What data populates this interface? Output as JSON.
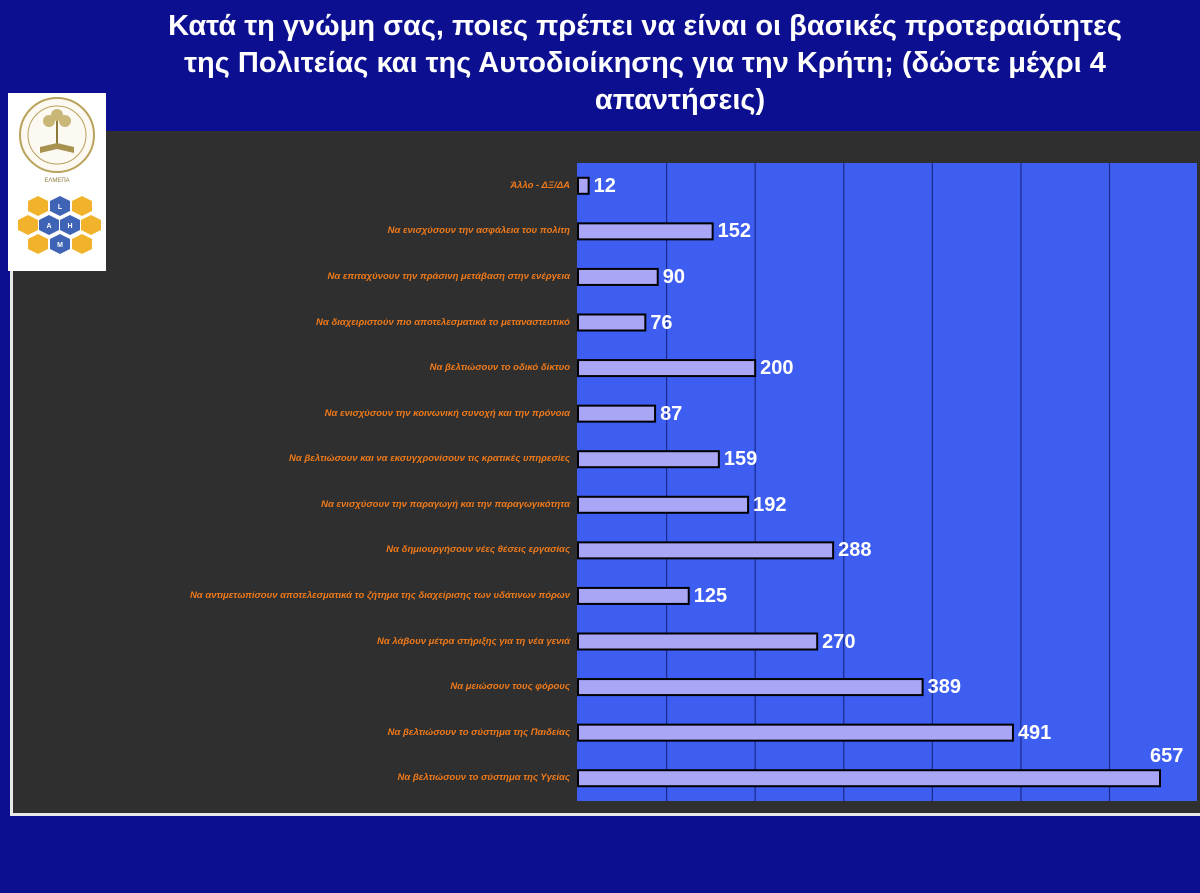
{
  "title_lines": [
    "Κατά τη γνώμη σας, ποιες πρέπει να είναι οι βασικές προτεραιότητες",
    "της Πολιτείας και της Αυτοδιοίκησης για την Κρήτη; (δώστε μέχρι 4",
    "απαντήσεις)"
  ],
  "logos": {
    "top": "university-seal-logo",
    "bottom": "hexagon-letters-logo",
    "seal_text": "HELLENIC MEDITERRANEAN UNIVERSITY",
    "seal_bottom": "ΕΛΜΕΠΑ",
    "hex_letters": [
      "L",
      "A",
      "H",
      "M"
    ]
  },
  "colors": {
    "background": "#0c0f8f",
    "panel": "#2f2f2f",
    "plot_area": "#3d5ef0",
    "bar_fill": "#a9a6f5",
    "category_text": "#f07a1a",
    "value_text": "#ffffff"
  },
  "chart_data": {
    "type": "bar",
    "orientation": "horizontal",
    "categories": [
      "Άλλο - ΔΞ/ΔΑ",
      "Να ενισχύσουν την ασφάλεια του πολίτη",
      "Να επιταχύνουν την πράσινη μετάβαση στην ενέργεια",
      "Να διαχειριστούν πιο αποτελεσματικά το μεταναστευτικό",
      "Να βελτιώσουν το οδικό δίκτυο",
      "Να ενισχύσουν την κοινωνική συνοχή και την πρόνοια",
      "Να βελτιώσουν και να εκσυγχρονίσουν τις κρατικές υπηρεσίες",
      "Να ενισχύσουν την παραγωγή και την παραγωγικότητα",
      "Να δημιουργήσουν νέες θέσεις εργασίας",
      "Να αντιμετωπίσουν αποτελεσματικά το ζήτημα της διαχείρισης των υδάτινων πόρων",
      "Να λάβουν μέτρα στήριξης για τη νέα γενιά",
      "Να μειώσουν τους φόρους",
      "Να βελτιώσουν το σύστημα της Παιδείας",
      "Να βελτιώσουν το σύστημα της Υγείας"
    ],
    "values": [
      12,
      152,
      90,
      76,
      200,
      87,
      159,
      192,
      288,
      125,
      270,
      389,
      491,
      657
    ],
    "xlim": [
      0,
      700
    ],
    "grid": true,
    "legend": "none"
  }
}
